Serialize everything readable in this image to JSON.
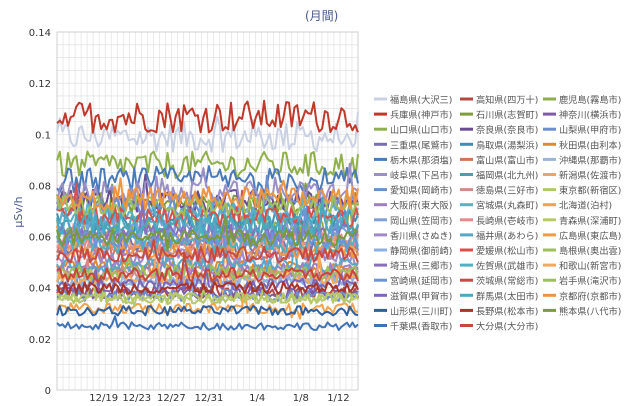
{
  "chart_data": {
    "type": "line",
    "title": "(月間)",
    "xlabel": "",
    "ylabel": "μSv/h",
    "ylim": [
      0,
      0.14
    ],
    "yticks": [
      "0",
      "0.02",
      "0.04",
      "0.06",
      "0.08",
      "0.1",
      "0.12",
      "0.14"
    ],
    "xticks": [
      "12/19",
      "12/23",
      "12/27",
      "12/31",
      "1/4",
      "1/8",
      "1/12"
    ],
    "grid": true,
    "legend_position": "right",
    "series": [
      {
        "name": "福島県(大沢三)",
        "color": "#c9d1e3",
        "approx_level": 0.099
      },
      {
        "name": "高知県(四万十)",
        "color": "#b5473f",
        "approx_level": 0.038
      },
      {
        "name": "鹿児島(霧島市)",
        "color": "#8fae4e",
        "approx_level": 0.064
      },
      {
        "name": "兵庫県(神戸市)",
        "color": "#c0392b",
        "approx_level": 0.107
      },
      {
        "name": "石川県(志賀町)",
        "color": "#7f9d3a",
        "approx_level": 0.073
      },
      {
        "name": "神奈川(横浜市)",
        "color": "#7d5ba6",
        "approx_level": 0.038
      },
      {
        "name": "山口県(山口市)",
        "color": "#8fb04a",
        "approx_level": 0.088
      },
      {
        "name": "奈良県(奈良市)",
        "color": "#6a4c93",
        "approx_level": 0.074
      },
      {
        "name": "山梨県(甲府市)",
        "color": "#6d8fcf",
        "approx_level": 0.037
      },
      {
        "name": "三重県(尾鷲市)",
        "color": "#7b6fb0",
        "approx_level": 0.056
      },
      {
        "name": "鳥取県(湯梨浜)",
        "color": "#3d8fb5",
        "approx_level": 0.066
      },
      {
        "name": "秋田県(由利本)",
        "color": "#e08a2e",
        "approx_level": 0.048
      },
      {
        "name": "栃木県(那須塩)",
        "color": "#4a7ab8",
        "approx_level": 0.082
      },
      {
        "name": "富山県(富山市)",
        "color": "#d0745c",
        "approx_level": 0.054
      },
      {
        "name": "沖縄県(那覇市)",
        "color": "#9ab5d9",
        "approx_level": 0.043
      },
      {
        "name": "岐阜県(下呂市)",
        "color": "#9a8fc8",
        "approx_level": 0.077
      },
      {
        "name": "福岡県(北九州)",
        "color": "#4aa0a8",
        "approx_level": 0.062
      },
      {
        "name": "新潟県(佐渡市)",
        "color": "#e9a56a",
        "approx_level": 0.058
      },
      {
        "name": "愛知県(岡崎市)",
        "color": "#6c8fd0",
        "approx_level": 0.071
      },
      {
        "name": "徳島県(三好市)",
        "color": "#d58a8a",
        "approx_level": 0.046
      },
      {
        "name": "東京都(新宿区)",
        "color": "#b0c86a",
        "approx_level": 0.036
      },
      {
        "name": "大阪府(東大阪)",
        "color": "#9c7fc4",
        "approx_level": 0.047
      },
      {
        "name": "宮城県(丸森町)",
        "color": "#5ab0c8",
        "approx_level": 0.069
      },
      {
        "name": "北海道(泊村)",
        "color": "#f2a24a",
        "approx_level": 0.032
      },
      {
        "name": "岡山県(笠岡市)",
        "color": "#7fa0d8",
        "approx_level": 0.063
      },
      {
        "name": "長崎県(壱岐市)",
        "color": "#e48c8c",
        "approx_level": 0.058
      },
      {
        "name": "青森県(深浦町)",
        "color": "#b7c96b",
        "approx_level": 0.036
      },
      {
        "name": "香川県(さぬき)",
        "color": "#a18ac9",
        "approx_level": 0.052
      },
      {
        "name": "福井県(あわら)",
        "color": "#56a8c6",
        "approx_level": 0.049
      },
      {
        "name": "広島県(東広島)",
        "color": "#f09a45",
        "approx_level": 0.055
      },
      {
        "name": "静岡県(御前崎)",
        "color": "#8db0e0",
        "approx_level": 0.043
      },
      {
        "name": "愛媛県(松山市)",
        "color": "#d9504a",
        "approx_level": 0.068
      },
      {
        "name": "島根県(奥出雲)",
        "color": "#9fbe5c",
        "approx_level": 0.072
      },
      {
        "name": "埼玉県(三郷市)",
        "color": "#8a6fbf",
        "approx_level": 0.061
      },
      {
        "name": "佐賀県(武雄市)",
        "color": "#4cb2c4",
        "approx_level": 0.057
      },
      {
        "name": "和歌山(新宮市)",
        "color": "#f3a85a",
        "approx_level": 0.044
      },
      {
        "name": "宮崎県(延岡市)",
        "color": "#6e93d6",
        "approx_level": 0.059
      },
      {
        "name": "茨城県(常総市)",
        "color": "#c94a44",
        "approx_level": 0.053
      },
      {
        "name": "岩手県(滝沢市)",
        "color": "#9cc05a",
        "approx_level": 0.046
      },
      {
        "name": "滋賀県(甲賀市)",
        "color": "#7c66b8",
        "approx_level": 0.041
      },
      {
        "name": "群馬県(太田市)",
        "color": "#49a9c0",
        "approx_level": 0.065
      },
      {
        "name": "京都府(京都市)",
        "color": "#ef9440",
        "approx_level": 0.075
      },
      {
        "name": "山形県(三川町)",
        "color": "#2f5f9e",
        "approx_level": 0.031
      },
      {
        "name": "長野県(松本市)",
        "color": "#a8342c",
        "approx_level": 0.04
      },
      {
        "name": "熊本県(八代市)",
        "color": "#7a9a3c",
        "approx_level": 0.06
      },
      {
        "name": "千葉県(香取市)",
        "color": "#3f73b8",
        "approx_level": 0.025
      },
      {
        "name": "大分県(大分市)",
        "color": "#c8463c",
        "approx_level": 0.045
      }
    ]
  }
}
